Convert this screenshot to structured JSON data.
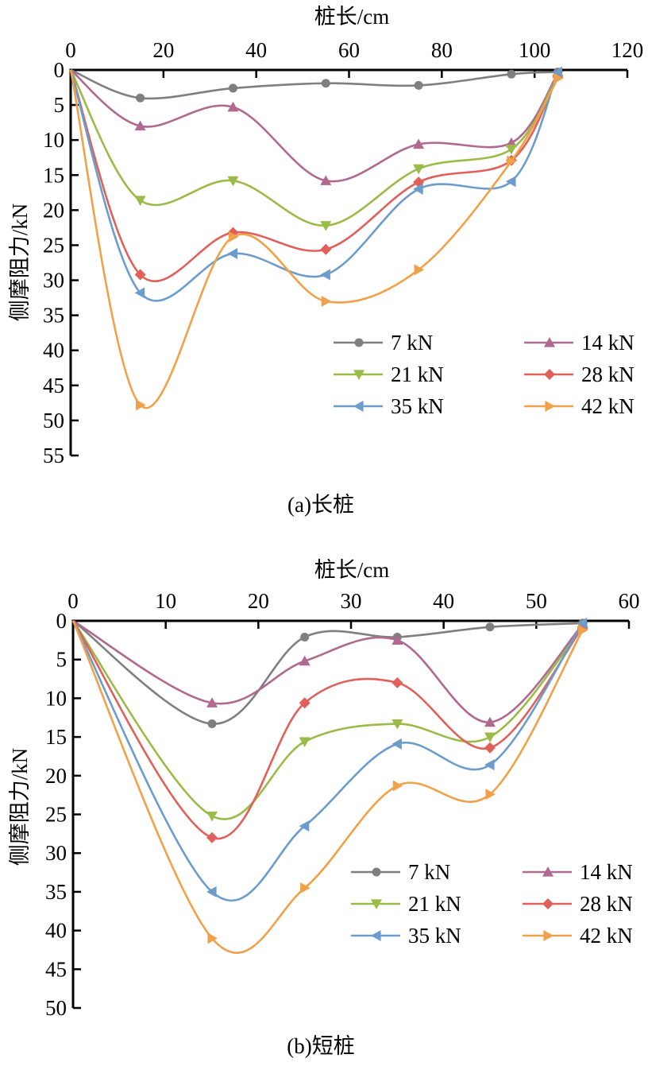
{
  "chart_data": [
    {
      "id": "long-pile",
      "type": "line",
      "caption": "(a)长桩",
      "xlabel": "桩长/cm",
      "ylabel": "侧摩阻力/kN",
      "x_axis_position": "top",
      "y_axis_inverted": true,
      "xlim": [
        0,
        120
      ],
      "ylim": [
        0,
        55
      ],
      "xticks": [
        0,
        20,
        40,
        60,
        80,
        100,
        120
      ],
      "yticks": [
        0,
        5,
        10,
        15,
        20,
        25,
        30,
        35,
        40,
        45,
        50,
        55
      ],
      "grid": false,
      "legend_position": "bottom-right",
      "x": [
        0,
        15,
        35,
        55,
        75,
        95,
        105
      ],
      "series": [
        {
          "name": "7 kN",
          "color": "#7f7f7f",
          "marker": "circle",
          "values": [
            0,
            4.0,
            2.6,
            1.9,
            2.2,
            0.6,
            0.3
          ]
        },
        {
          "name": "14 kN",
          "color": "#b0698f",
          "marker": "triangle-up",
          "values": [
            0,
            8.0,
            5.3,
            15.8,
            10.6,
            10.4,
            0.5
          ]
        },
        {
          "name": "21 kN",
          "color": "#9bbb48",
          "marker": "triangle-down",
          "values": [
            0,
            18.6,
            15.8,
            22.2,
            14.1,
            11.3,
            0.8
          ]
        },
        {
          "name": "28 kN",
          "color": "#e0605a",
          "marker": "diamond",
          "values": [
            0,
            29.2,
            23.2,
            25.6,
            16.0,
            12.9,
            0.8
          ]
        },
        {
          "name": "35 kN",
          "color": "#6b9ccb",
          "marker": "triangle-left",
          "values": [
            0,
            31.8,
            26.2,
            29.2,
            17.0,
            15.9,
            0.3
          ]
        },
        {
          "name": "42 kN",
          "color": "#f0a14a",
          "marker": "triangle-right",
          "values": [
            0,
            47.8,
            23.8,
            33.0,
            28.5,
            13.0,
            1.2
          ]
        }
      ]
    },
    {
      "id": "short-pile",
      "type": "line",
      "caption": "(b)短桩",
      "xlabel": "桩长/cm",
      "ylabel": "侧摩阻力/kN",
      "x_axis_position": "top",
      "y_axis_inverted": true,
      "xlim": [
        0,
        60
      ],
      "ylim": [
        0,
        50
      ],
      "xticks": [
        0,
        10,
        20,
        30,
        40,
        50,
        60
      ],
      "yticks": [
        0,
        5,
        10,
        15,
        20,
        25,
        30,
        35,
        40,
        45,
        50
      ],
      "grid": false,
      "legend_position": "bottom-right",
      "x": [
        0,
        15,
        25,
        35,
        45,
        55
      ],
      "series": [
        {
          "name": "7 kN",
          "color": "#7f7f7f",
          "marker": "circle",
          "values": [
            0,
            13.3,
            2.1,
            2.1,
            0.8,
            0.3
          ]
        },
        {
          "name": "14 kN",
          "color": "#b0698f",
          "marker": "triangle-up",
          "values": [
            0,
            10.6,
            5.2,
            2.5,
            13.1,
            0.5
          ]
        },
        {
          "name": "21 kN",
          "color": "#9bbb48",
          "marker": "triangle-down",
          "values": [
            0,
            25.2,
            15.6,
            13.3,
            15.0,
            0.8
          ]
        },
        {
          "name": "28 kN",
          "color": "#e0605a",
          "marker": "diamond",
          "values": [
            0,
            28.0,
            10.6,
            8.0,
            16.4,
            0.8
          ]
        },
        {
          "name": "35 kN",
          "color": "#6b9ccb",
          "marker": "triangle-left",
          "values": [
            0,
            35.0,
            26.5,
            15.9,
            18.6,
            0.3
          ]
        },
        {
          "name": "42 kN",
          "color": "#f0a14a",
          "marker": "triangle-right",
          "values": [
            0,
            41.0,
            34.5,
            21.3,
            22.4,
            1.2
          ]
        }
      ]
    }
  ]
}
